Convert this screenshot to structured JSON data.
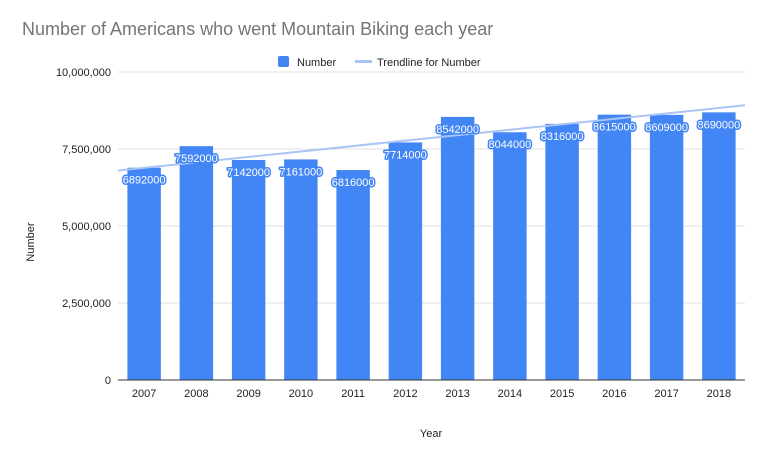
{
  "chart_data": {
    "type": "bar",
    "title": "Number of Americans who went Mountain Biking each year",
    "xlabel": "Year",
    "ylabel": "Number",
    "categories": [
      "2007",
      "2008",
      "2009",
      "2010",
      "2011",
      "2012",
      "2013",
      "2014",
      "2015",
      "2016",
      "2017",
      "2018"
    ],
    "series": [
      {
        "name": "Number",
        "color": "#4285f4",
        "values": [
          6892000,
          7592000,
          7142000,
          7161000,
          6816000,
          7714000,
          8542000,
          8044000,
          8316000,
          8615000,
          8609000,
          8690000
        ],
        "data_labels": [
          "6892000",
          "7592000",
          "7142000",
          "7161000",
          "6816000",
          "7714000",
          "8542000",
          "8044000",
          "8316000",
          "8615000",
          "8609000",
          "8690000"
        ]
      }
    ],
    "trendline": {
      "name": "Trendline for Number",
      "color": "#a9c4f5",
      "type": "linear",
      "start": 6800000,
      "end": 8920000
    },
    "ylim": [
      0,
      10000000
    ],
    "yticks": [
      0,
      2500000,
      5000000,
      7500000,
      10000000
    ],
    "ytick_labels": [
      "0",
      "2,500,000",
      "5,000,000",
      "7,500,000",
      "10,000,000"
    ],
    "grid": true,
    "legend_position": "top"
  }
}
